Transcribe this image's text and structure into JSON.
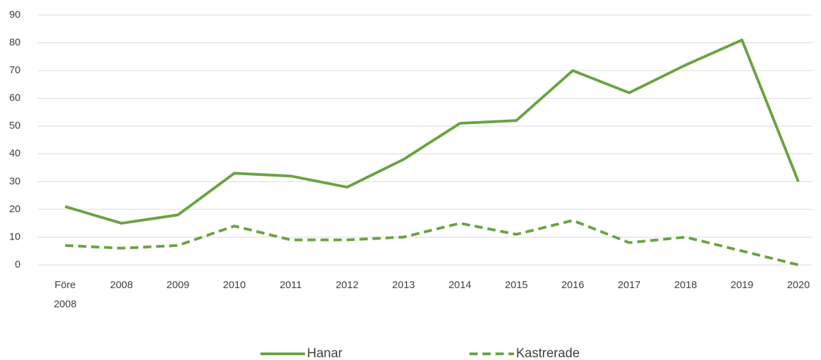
{
  "chart_data": {
    "type": "line",
    "categories": [
      "Före 2008",
      "2008",
      "2009",
      "2010",
      "2011",
      "2012",
      "2013",
      "2014",
      "2015",
      "2016",
      "2017",
      "2018",
      "2019",
      "2020"
    ],
    "series": [
      {
        "name": "Hanar",
        "color": "#6aa341",
        "dash": "solid",
        "values": [
          21,
          15,
          18,
          33,
          32,
          28,
          38,
          51,
          52,
          70,
          62,
          72,
          81,
          30
        ]
      },
      {
        "name": "Kastrerade",
        "color": "#6aa341",
        "dash": "dashed",
        "values": [
          7,
          6,
          7,
          14,
          9,
          9,
          10,
          15,
          11,
          16,
          8,
          10,
          5,
          0
        ]
      }
    ],
    "ylim": [
      0,
      90
    ],
    "yticks": [
      0,
      10,
      20,
      30,
      40,
      50,
      60,
      70,
      80,
      90
    ],
    "grid": true,
    "legend": "bottom"
  }
}
